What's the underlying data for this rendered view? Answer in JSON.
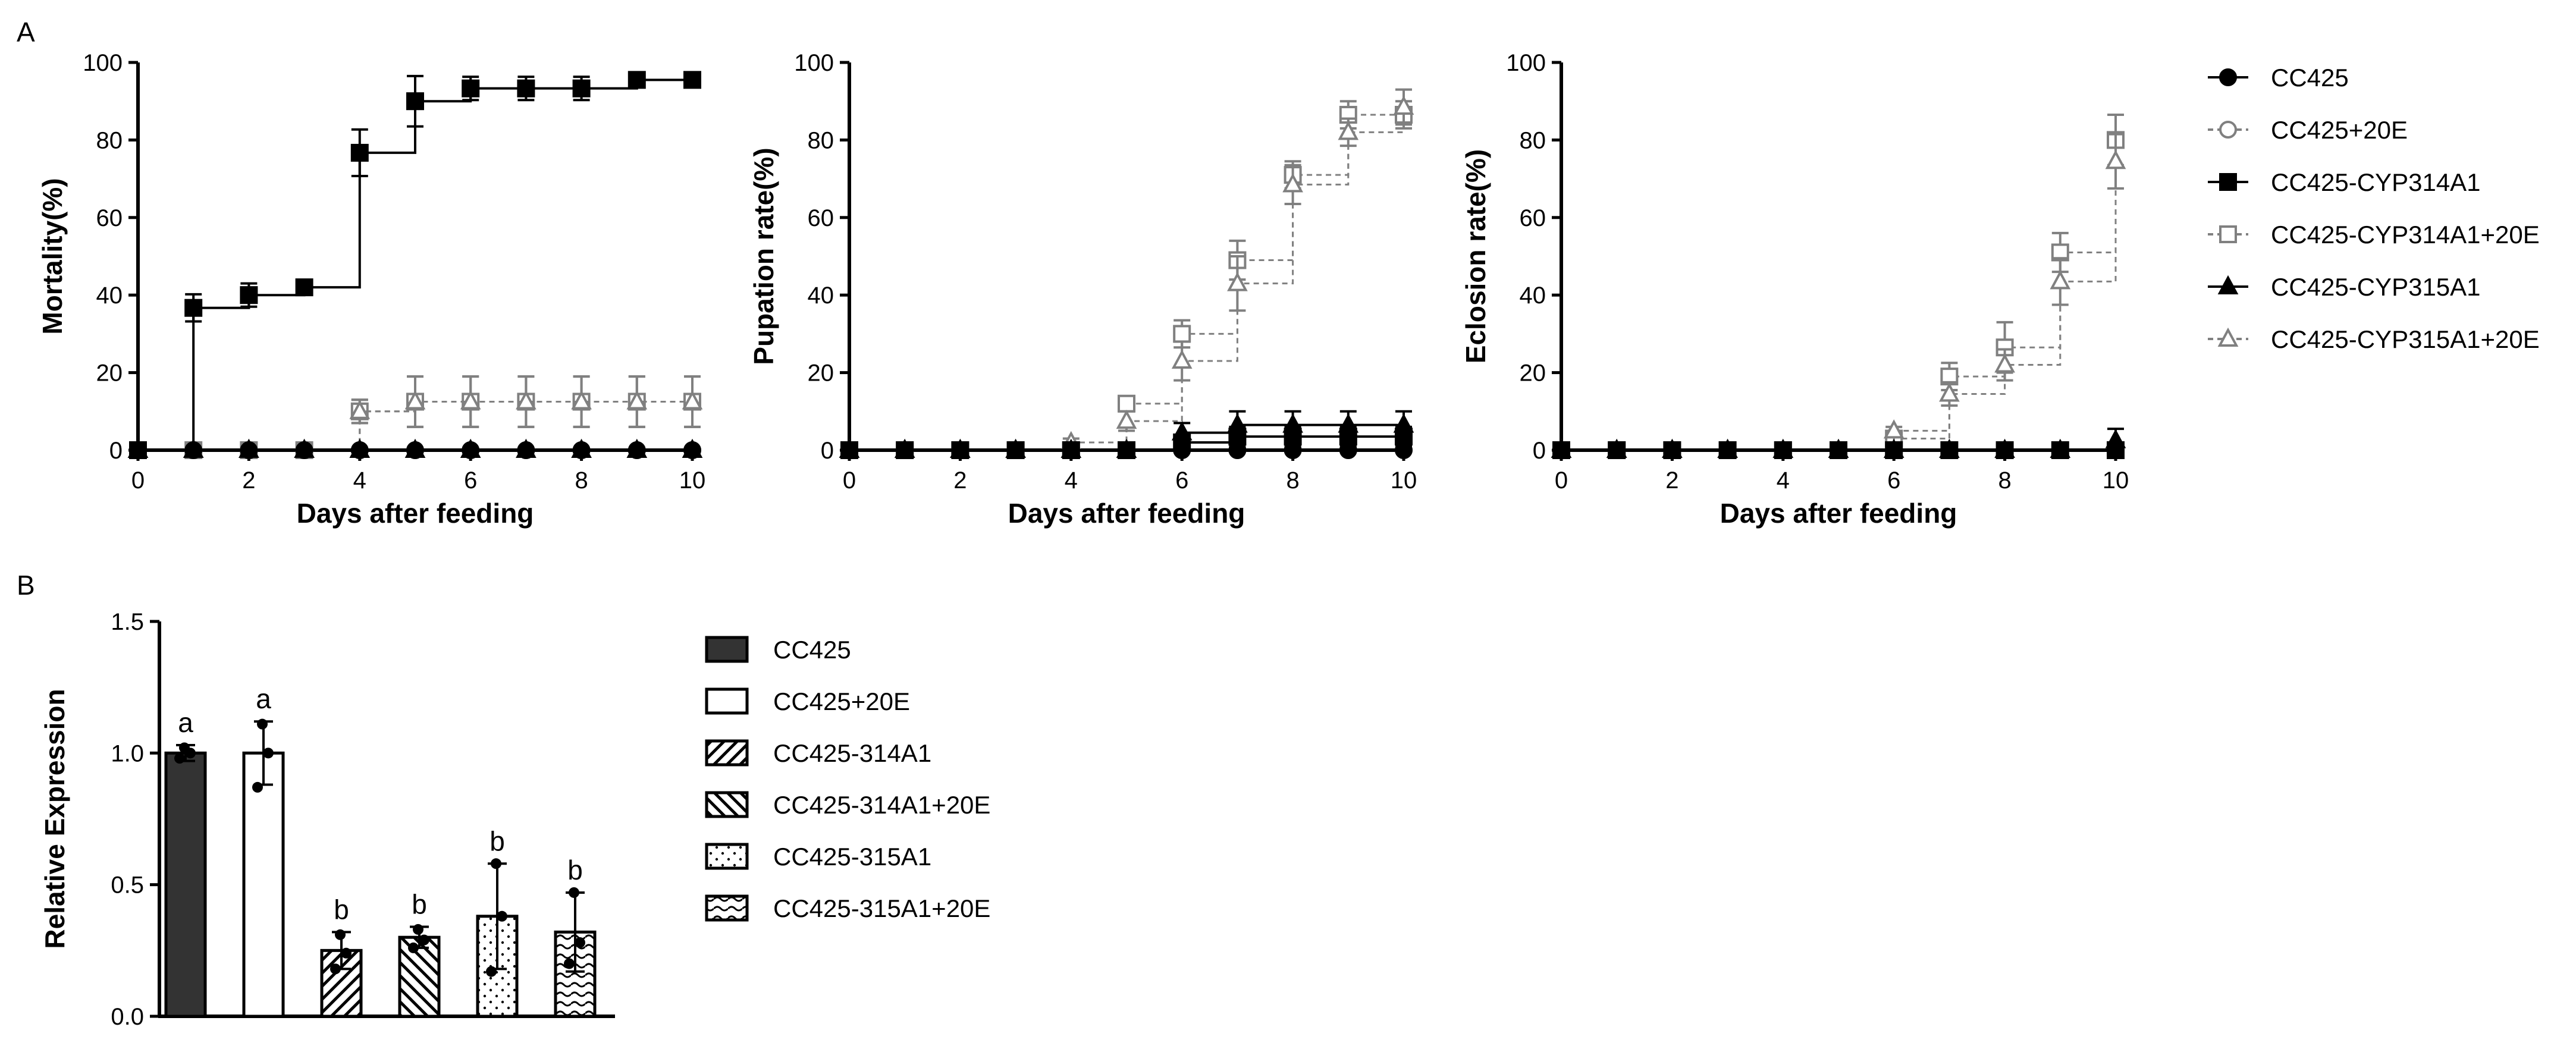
{
  "panels": {
    "a": "A",
    "b": "B"
  },
  "line_legend": [
    {
      "label": "CC425",
      "marker": "circle",
      "fill": "solid",
      "dashed": false
    },
    {
      "label": "CC425+20E",
      "marker": "circle",
      "fill": "open",
      "dashed": true
    },
    {
      "label": "CC425-CYP314A1",
      "marker": "square",
      "fill": "solid",
      "dashed": false
    },
    {
      "label": "CC425-CYP314A1+20E",
      "marker": "square",
      "fill": "open",
      "dashed": true
    },
    {
      "label": "CC425-CYP315A1",
      "marker": "triangle",
      "fill": "solid",
      "dashed": false
    },
    {
      "label": "CC425-CYP315A1+20E",
      "marker": "triangle",
      "fill": "open",
      "dashed": true
    }
  ],
  "bar_legend": [
    {
      "label": "CC425",
      "pattern": "solid-dark"
    },
    {
      "label": "CC425+20E",
      "pattern": "white"
    },
    {
      "label": "CC425-314A1",
      "pattern": "diag-up"
    },
    {
      "label": "CC425-314A1+20E",
      "pattern": "diag-down"
    },
    {
      "label": "CC425-315A1",
      "pattern": "dots"
    },
    {
      "label": "CC425-315A1+20E",
      "pattern": "wave"
    }
  ],
  "colors": {
    "solid_series": "#000000",
    "open_series": "#808080",
    "dark_bar": "#333333"
  },
  "chart_data": [
    {
      "type": "line",
      "step": true,
      "xlabel": "Days after feeding",
      "ylabel": "Mortality(%)",
      "xlim": [
        0,
        10
      ],
      "ylim": [
        0,
        100
      ],
      "xticks": [
        0,
        2,
        4,
        6,
        8,
        10
      ],
      "yticks": [
        0,
        20,
        40,
        60,
        80,
        100
      ],
      "x": [
        0,
        1,
        2,
        3,
        4,
        5,
        6,
        7,
        8,
        9,
        10
      ],
      "series": [
        {
          "name": "CC425",
          "values": [
            0,
            0,
            0,
            0,
            0,
            0,
            0,
            0,
            0,
            0,
            0
          ]
        },
        {
          "name": "CC425+20E",
          "values": [
            0,
            0,
            0,
            0,
            0,
            0,
            0,
            0,
            0,
            0,
            0
          ]
        },
        {
          "name": "CC425-CYP314A1",
          "values": [
            0,
            36.7,
            40,
            42,
            76.7,
            90,
            93.3,
            93.3,
            93.3,
            95.5,
            95.5
          ],
          "errors": [
            0,
            3.5,
            3,
            1.5,
            6,
            6.5,
            3,
            3,
            3,
            1.5,
            1.5
          ]
        },
        {
          "name": "CC425-CYP314A1+20E",
          "values": [
            0,
            0,
            0,
            0,
            10,
            12.5,
            12.5,
            12.5,
            12.5,
            12.5,
            12.5
          ],
          "errors": [
            0,
            0,
            0,
            0,
            3,
            6.5,
            6.5,
            6.5,
            6.5,
            6.5,
            6.5
          ]
        },
        {
          "name": "CC425-CYP315A1",
          "values": [
            0,
            0,
            0,
            0,
            0,
            0,
            0,
            0,
            0,
            0,
            0
          ]
        },
        {
          "name": "CC425-CYP315A1+20E",
          "values": [
            0,
            0,
            0,
            0,
            10,
            12.5,
            12.5,
            12.5,
            12.5,
            12.5,
            12.5
          ],
          "errors": [
            0,
            0,
            0,
            0,
            3,
            6.5,
            6.5,
            6.5,
            6.5,
            6.5,
            6.5
          ]
        }
      ]
    },
    {
      "type": "line",
      "step": true,
      "xlabel": "Days after feeding",
      "ylabel": "Pupation rate(%)",
      "xlim": [
        0,
        10
      ],
      "ylim": [
        0,
        100
      ],
      "xticks": [
        0,
        2,
        4,
        6,
        8,
        10
      ],
      "yticks": [
        0,
        20,
        40,
        60,
        80,
        100
      ],
      "x": [
        0,
        1,
        2,
        3,
        4,
        5,
        6,
        7,
        8,
        9,
        10
      ],
      "series": [
        {
          "name": "CC425",
          "values": [
            0,
            0,
            0,
            0,
            0,
            0,
            0,
            0,
            0,
            0,
            0
          ]
        },
        {
          "name": "CC425+20E",
          "values": [
            0,
            0,
            0,
            0,
            0,
            0,
            0,
            0,
            0,
            0,
            0
          ]
        },
        {
          "name": "CC425-CYP314A1",
          "values": [
            0,
            0,
            0,
            0,
            0,
            0,
            2,
            3.5,
            3.5,
            3.5,
            3.5
          ],
          "errors": [
            0,
            0,
            0,
            0,
            0,
            0,
            1.5,
            2.5,
            2.5,
            2.5,
            2.5
          ]
        },
        {
          "name": "CC425-CYP314A1+20E",
          "values": [
            0,
            0,
            0,
            0,
            0,
            12,
            30,
            49,
            71,
            86.5,
            86.5
          ],
          "errors": [
            0,
            0,
            0,
            0,
            0,
            1.5,
            3.5,
            5,
            3.5,
            3.5,
            3.5
          ]
        },
        {
          "name": "CC425-CYP315A1",
          "values": [
            0,
            0,
            0,
            0,
            0,
            0,
            4.5,
            6.5,
            6.5,
            6.5,
            6.5
          ],
          "errors": [
            0,
            0,
            0,
            0,
            0,
            0,
            2.5,
            3.5,
            3.5,
            3.5,
            3.5
          ]
        },
        {
          "name": "CC425-CYP315A1+20E",
          "values": [
            0,
            0,
            0,
            0,
            2,
            7.5,
            23,
            43,
            68.5,
            82,
            88.5
          ],
          "errors": [
            0,
            0,
            0,
            0,
            1,
            2.5,
            5,
            7,
            5,
            3.5,
            4.5
          ]
        }
      ]
    },
    {
      "type": "line",
      "step": true,
      "xlabel": "Days after feeding",
      "ylabel": "Eclosion rate(%)",
      "xlim": [
        0,
        10
      ],
      "ylim": [
        0,
        100
      ],
      "xticks": [
        0,
        2,
        4,
        6,
        8,
        10
      ],
      "yticks": [
        0,
        20,
        40,
        60,
        80,
        100
      ],
      "x": [
        0,
        1,
        2,
        3,
        4,
        5,
        6,
        7,
        8,
        9,
        10
      ],
      "series": [
        {
          "name": "CC425",
          "values": [
            0,
            0,
            0,
            0,
            0,
            0,
            0,
            0,
            0,
            0,
            0
          ]
        },
        {
          "name": "CC425+20E",
          "values": [
            0,
            0,
            0,
            0,
            0,
            0,
            0,
            0,
            0,
            0,
            0
          ]
        },
        {
          "name": "CC425-CYP314A1",
          "values": [
            0,
            0,
            0,
            0,
            0,
            0,
            0,
            0,
            0,
            0,
            0
          ]
        },
        {
          "name": "CC425-CYP314A1+20E",
          "values": [
            0,
            0,
            0,
            0,
            0,
            0,
            3,
            19,
            26.5,
            51,
            80
          ],
          "errors": [
            0,
            0,
            0,
            0,
            0,
            0,
            1,
            3.5,
            6.5,
            5,
            6.5
          ]
        },
        {
          "name": "CC425-CYP315A1",
          "values": [
            0,
            0,
            0,
            0,
            0,
            0,
            0,
            0,
            0,
            0,
            2.5
          ],
          "errors": [
            0,
            0,
            0,
            0,
            0,
            0,
            0,
            0,
            0,
            0,
            3
          ]
        },
        {
          "name": "CC425-CYP315A1+20E",
          "values": [
            0,
            0,
            0,
            0,
            0,
            0,
            5,
            14.5,
            22,
            43.5,
            74.5
          ],
          "errors": [
            0,
            0,
            0,
            0,
            0,
            0,
            1,
            3,
            4,
            6,
            7
          ]
        }
      ]
    },
    {
      "type": "bar",
      "ylabel": "Relative Expression",
      "ylim": [
        0,
        1.5
      ],
      "yticks": [
        "0.0",
        "0.5",
        "1.0",
        "1.5"
      ],
      "categories": [
        "CC425",
        "CC425+20E",
        "CC425-314A1",
        "CC425-314A1+20E",
        "CC425-315A1",
        "CC425-315A1+20E"
      ],
      "values": [
        1.0,
        1.0,
        0.25,
        0.3,
        0.38,
        0.32
      ],
      "errors": [
        0.03,
        0.12,
        0.07,
        0.04,
        0.2,
        0.15
      ],
      "points": [
        [
          0.98,
          1.0,
          1.02
        ],
        [
          0.87,
          1.0,
          1.11
        ],
        [
          0.18,
          0.24,
          0.31
        ],
        [
          0.26,
          0.29,
          0.33
        ],
        [
          0.17,
          0.38,
          0.58
        ],
        [
          0.2,
          0.28,
          0.47
        ]
      ],
      "significance": [
        "a",
        "a",
        "b",
        "b",
        "b",
        "b"
      ]
    }
  ]
}
